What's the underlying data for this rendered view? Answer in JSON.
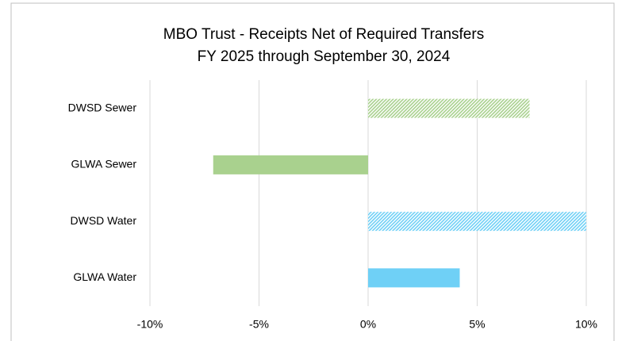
{
  "chart_data": {
    "type": "hbar",
    "title": [
      "MBO Trust - Receipts Net of Required Transfers",
      "FY 2025 through September 30, 2024"
    ],
    "categories": [
      "DWSD Sewer",
      "GLWA Sewer",
      "DWSD Water",
      "GLWA Water"
    ],
    "values": [
      7.4,
      -7.1,
      10.0,
      4.2
    ],
    "colors": [
      "#a9d18e",
      "#a9d18e",
      "#6fd0f6",
      "#6fd0f6"
    ],
    "hatched": [
      true,
      false,
      true,
      false
    ],
    "xlim": [
      -10,
      10
    ],
    "xticks": [
      {
        "value": -10,
        "label": "-10%"
      },
      {
        "value": -5,
        "label": "-5%"
      },
      {
        "value": 0,
        "label": "0%"
      },
      {
        "value": 5,
        "label": "5%"
      },
      {
        "value": 10,
        "label": "10%"
      }
    ],
    "grid": true
  }
}
